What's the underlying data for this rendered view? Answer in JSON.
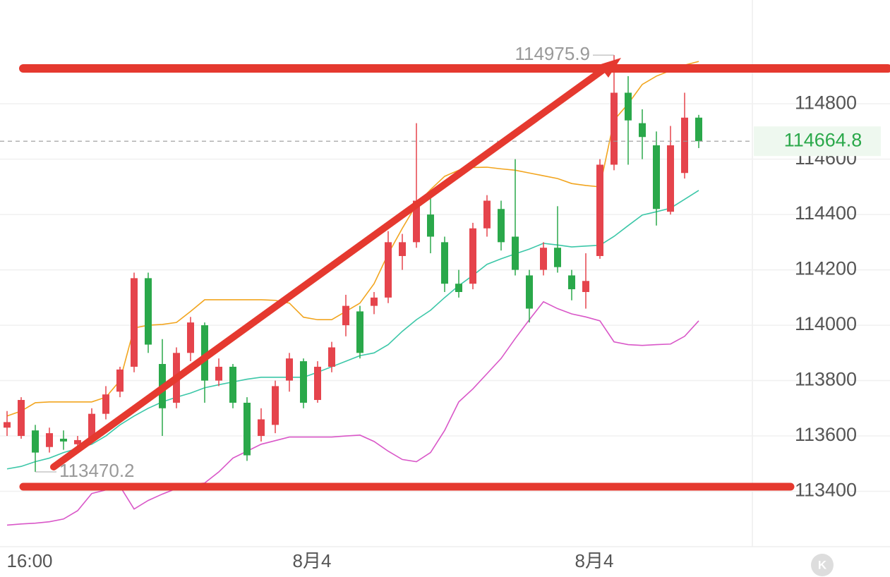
{
  "chart_data": {
    "type": "candlestick",
    "categories": [
      null,
      "16:00",
      null,
      null,
      null,
      null,
      null,
      null,
      null,
      null,
      null,
      null,
      null,
      null,
      null,
      null,
      null,
      null,
      null,
      null,
      null,
      "8月4",
      null,
      null,
      null,
      null,
      null,
      null,
      null,
      null,
      null,
      null,
      null,
      null,
      null,
      null,
      null,
      null,
      null,
      null,
      null,
      "8月4",
      null,
      null,
      null,
      null,
      null,
      null,
      null,
      null
    ],
    "open": [
      113630,
      113600,
      113620,
      113560,
      113590,
      113570,
      113590,
      113680,
      113760,
      113850,
      114170,
      113860,
      113720,
      113900,
      114000,
      113800,
      113850,
      113720,
      113600,
      113640,
      113800,
      113870,
      113730,
      113850,
      114000,
      114050,
      114070,
      114100,
      114250,
      114300,
      114400,
      114300,
      114150,
      114150,
      114350,
      114420,
      114320,
      114180,
      114200,
      114280,
      114180,
      114120,
      114250,
      114580,
      114840,
      114730,
      114650,
      114410,
      114550,
      114750
    ],
    "high": [
      113690,
      113740,
      113640,
      113630,
      113620,
      113600,
      113700,
      113780,
      113850,
      114190,
      114190,
      113950,
      113920,
      114030,
      114010,
      113880,
      113860,
      113740,
      113700,
      113800,
      113900,
      113880,
      113870,
      113940,
      114110,
      114070,
      114120,
      114340,
      114330,
      114730,
      114480,
      114320,
      114200,
      114370,
      114470,
      114450,
      114600,
      114200,
      114300,
      114430,
      114200,
      114260,
      114600,
      114975.9,
      114900,
      114780,
      114700,
      114720,
      114840,
      114760
    ],
    "low": [
      113600,
      113590,
      113470.2,
      113540,
      113550,
      113560,
      113580,
      113660,
      113740,
      113830,
      113900,
      113600,
      113700,
      113870,
      113720,
      113780,
      113700,
      113510,
      113580,
      113610,
      113760,
      113700,
      113720,
      113830,
      113960,
      113880,
      114040,
      114080,
      114200,
      114280,
      114260,
      114120,
      114100,
      114130,
      114320,
      114270,
      114180,
      114010,
      114180,
      114190,
      114090,
      114060,
      114240,
      114560,
      114580,
      114600,
      114360,
      114400,
      114530,
      114640
    ],
    "close": [
      113650,
      113730,
      113540,
      113610,
      113580,
      113585,
      113680,
      113750,
      113840,
      114170,
      113930,
      113700,
      113900,
      114010,
      113800,
      113850,
      113720,
      113530,
      113660,
      113780,
      113880,
      113720,
      113850,
      113920,
      114070,
      113900,
      114100,
      114300,
      114300,
      114450,
      114320,
      114150,
      114120,
      114350,
      114450,
      114300,
      114200,
      114060,
      114280,
      114210,
      114130,
      114160,
      114580,
      114840,
      114740,
      114680,
      114420,
      114650,
      114750,
      114664.8
    ],
    "up_color": "#e5444c",
    "down_color": "#2aa84a",
    "lines": [
      {
        "color": "#f2a51f",
        "values": [
          113672,
          113690,
          113720,
          113723,
          113723,
          113723,
          113723,
          113740,
          113800,
          113990,
          114000,
          114003,
          114010,
          114050,
          114092,
          114092,
          114092,
          114092,
          114092,
          114090,
          114080,
          114029,
          114020,
          114020,
          114050,
          114080,
          114150,
          114258,
          114350,
          114436,
          114490,
          114538,
          114560,
          114570,
          114571,
          114565,
          114560,
          114550,
          114540,
          114530,
          114512,
          114505,
          114500,
          114741,
          114800,
          114870,
          114900,
          114920,
          114940,
          114953
        ]
      },
      {
        "color": "#3cc7a8",
        "values": [
          113481,
          113490,
          113507,
          113520,
          113540,
          113555,
          113570,
          113600,
          113640,
          113672,
          113700,
          113723,
          113740,
          113755,
          113774,
          113785,
          113795,
          113805,
          113812,
          113812,
          113812,
          113812,
          113830,
          113850,
          113870,
          113890,
          113900,
          113930,
          113978,
          114020,
          114054,
          114100,
          114143,
          114180,
          114220,
          114240,
          114258,
          114275,
          114296,
          114290,
          114283,
          114286,
          114289,
          114321,
          114360,
          114398,
          114410,
          114423,
          114455,
          114487
        ]
      },
      {
        "color": "#d957c8",
        "values": [
          113278,
          113282,
          113285,
          113290,
          113300,
          113330,
          113392,
          113405,
          113418,
          113336,
          113367,
          113390,
          113410,
          113425,
          113430,
          113470,
          113520,
          113545,
          113570,
          113583,
          113596,
          113596,
          113596,
          113596,
          113600,
          113603,
          113580,
          113545,
          113515,
          113507,
          113540,
          113620,
          113723,
          113770,
          113825,
          113880,
          113952,
          114020,
          114085,
          114060,
          114041,
          114030,
          114016,
          113940,
          113930,
          113927,
          113930,
          113932,
          113960,
          114016
        ]
      }
    ],
    "ylim": [
      113200,
      115175
    ],
    "yticks": [
      113400,
      113600,
      113800,
      114000,
      114200,
      114400,
      114600,
      114800
    ],
    "grid": true,
    "last_price": 114664.8,
    "max_label": 114975.9,
    "min_label": 113470.2,
    "logo": "K"
  }
}
